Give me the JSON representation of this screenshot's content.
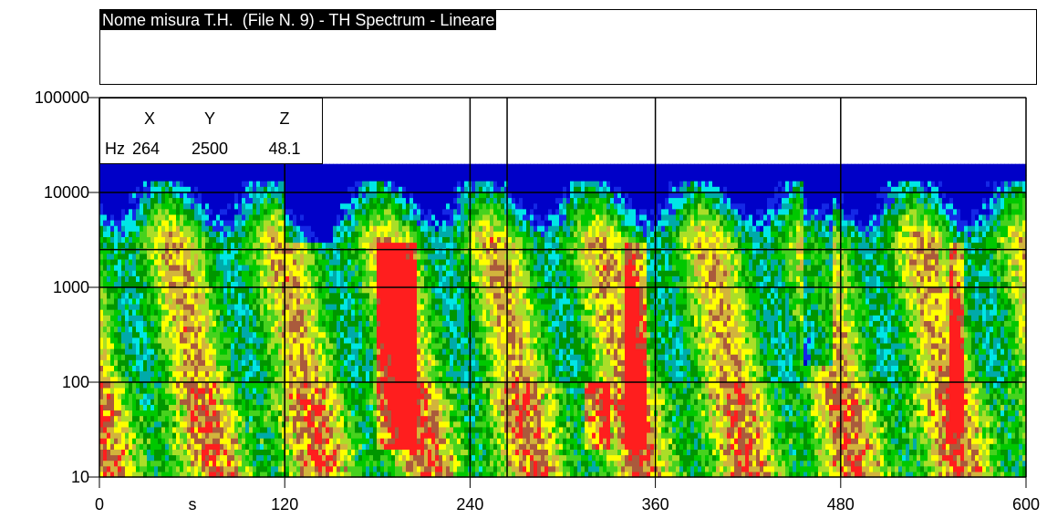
{
  "header": {
    "title": "Nome misura T.H.  (File N. 9) - TH Spectrum - Lineare"
  },
  "readout": {
    "x_label": "X",
    "y_label": "Y",
    "z_label": "Z",
    "unit_label": "Hz",
    "x_value": "264",
    "y_value": "2500",
    "z_value": "48.1"
  },
  "colors": {
    "scale": [
      "#0000c8",
      "#1428e6",
      "#00e6e6",
      "#00aaaa",
      "#009600",
      "#00c800",
      "#46d21e",
      "#aade28",
      "#ffff00",
      "#d2b43c",
      "#aa5a3c",
      "#ff1e1e"
    ],
    "grid": "#000000",
    "cursor": "#000000"
  },
  "chart_data": {
    "type": "heatmap",
    "title": "Nome misura T.H.  (File N. 9) - TH Spectrum - Lineare",
    "xlabel": "s",
    "ylabel": "Hz",
    "x_ticks": [
      "0",
      "120",
      "240",
      "360",
      "480",
      "600"
    ],
    "y_ticks": [
      "100000",
      "10000",
      "1000",
      "100",
      "10"
    ],
    "xlim": [
      0,
      600
    ],
    "ylim": [
      10,
      100000
    ],
    "y_scale": "log",
    "grid": true,
    "extra_vertical_lines_s": [
      264
    ],
    "cursor": {
      "x_s": 264,
      "y_hz": 2500
    },
    "frequency_limit_hz": 20000,
    "high_level_regions": [
      {
        "time_s": [
          180,
          205
        ],
        "freq_hz": [
          20,
          3000
        ]
      },
      {
        "time_s": [
          315,
          330
        ],
        "freq_hz": [
          20,
          100
        ]
      },
      {
        "time_s": [
          340,
          355
        ],
        "freq_hz": [
          20,
          3000
        ]
      },
      {
        "time_s": [
          550,
          560
        ],
        "freq_hz": [
          30,
          3000
        ]
      }
    ],
    "low_level_regions": [
      {
        "time_s": [
          455,
          475
        ],
        "freq_hz": [
          150,
          20000
        ]
      },
      {
        "time_s": [
          120,
          150
        ],
        "freq_hz": [
          3000,
          20000
        ]
      }
    ]
  }
}
